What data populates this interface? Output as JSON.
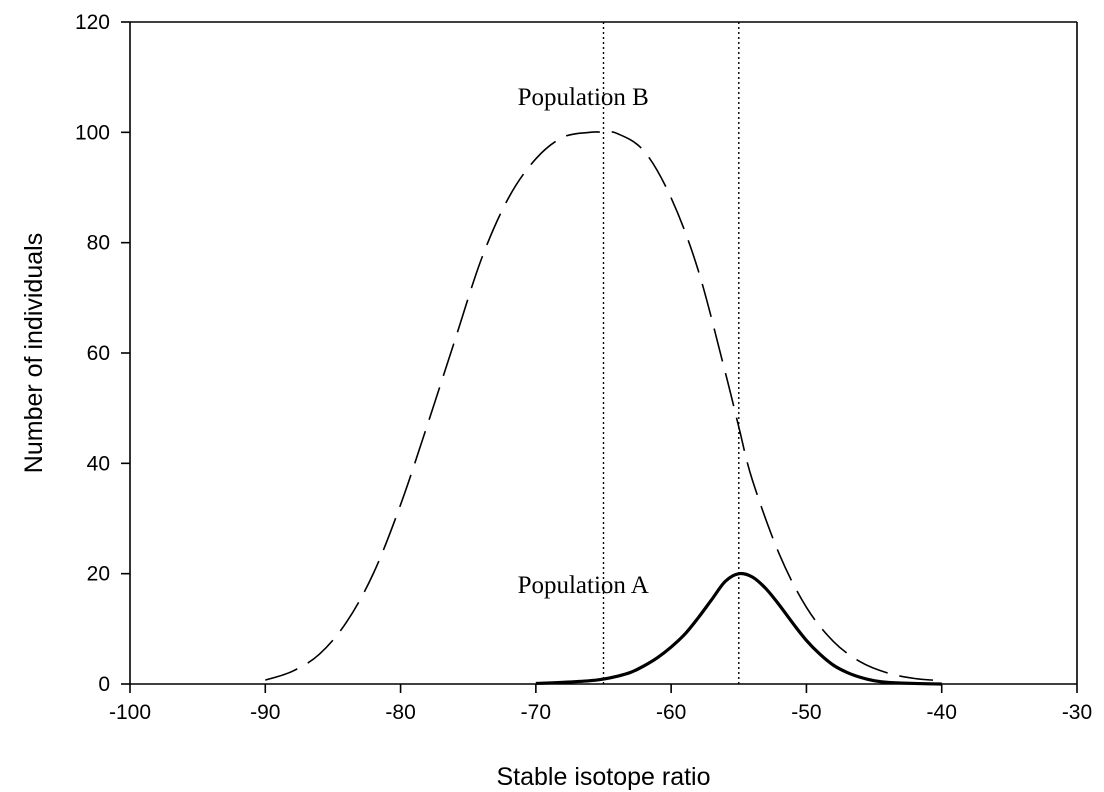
{
  "chart_data": {
    "type": "line",
    "title": "",
    "xlabel": "Stable isotope ratio",
    "ylabel": "Number of individuals",
    "xlim": [
      -100,
      -30
    ],
    "ylim": [
      0,
      120
    ],
    "xticks": [
      -100,
      -90,
      -80,
      -70,
      -60,
      -50,
      -40,
      -30
    ],
    "yticks": [
      0,
      20,
      40,
      60,
      80,
      100,
      120
    ],
    "xtick_labels": [
      "-100",
      "-90",
      "-80",
      "-70",
      "-60",
      "-50",
      "-40",
      "-30"
    ],
    "ytick_labels": [
      "0",
      "20",
      "40",
      "60",
      "80",
      "100",
      "120"
    ],
    "grid": false,
    "legend": false,
    "series": [
      {
        "name": "Population B",
        "style": "dashed",
        "color": "#000000",
        "x": [
          -90,
          -88,
          -86,
          -84,
          -82,
          -80,
          -78,
          -76,
          -74,
          -72,
          -70,
          -68,
          -66,
          -65,
          -64,
          -62,
          -60,
          -58,
          -56,
          -55,
          -54,
          -52,
          -50,
          -48,
          -46,
          -44,
          -42,
          -40
        ],
        "y": [
          0.7,
          2.3,
          5.4,
          11.2,
          20.1,
          32.5,
          47.1,
          62.2,
          77.2,
          88.2,
          95.2,
          99.1,
          100.0,
          100.0,
          99.8,
          96.6,
          88.1,
          75.0,
          56.5,
          46.6,
          37.0,
          23.5,
          13.9,
          7.7,
          4.0,
          2.0,
          1.0,
          0.6
        ]
      },
      {
        "name": "Population A",
        "style": "solid",
        "color": "#000000",
        "x": [
          -70,
          -68,
          -66,
          -65,
          -64,
          -63,
          -62,
          -61,
          -60,
          -59,
          -58,
          -57,
          -56,
          -55,
          -54,
          -53,
          -52,
          -51,
          -50,
          -49,
          -48,
          -47,
          -46,
          -45,
          -44,
          -42,
          -40
        ],
        "y": [
          0.1,
          0.3,
          0.6,
          0.9,
          1.4,
          2.1,
          3.3,
          4.8,
          6.7,
          9.0,
          12.0,
          15.3,
          18.6,
          20.0,
          19.4,
          17.3,
          14.3,
          11.0,
          7.9,
          5.4,
          3.4,
          2.1,
          1.2,
          0.6,
          0.3,
          0.1,
          0.0
        ]
      }
    ],
    "reference_lines": [
      {
        "x": -65,
        "style": "dotted"
      },
      {
        "x": -55,
        "style": "dotted"
      }
    ],
    "annotations": [
      {
        "text": "Population B",
        "x": -66.5,
        "y": 105
      },
      {
        "text": "Population A",
        "x": -66.5,
        "y": 16.5
      }
    ]
  }
}
